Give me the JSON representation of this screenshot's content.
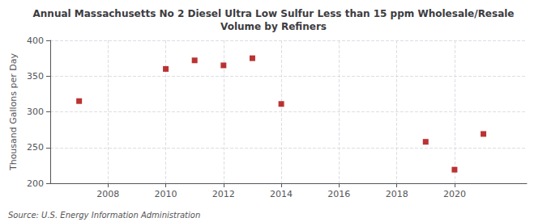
{
  "chart_data": {
    "type": "scatter",
    "title": "Annual Massachusetts No 2 Diesel Ultra Low Sulfur Less than 15 ppm Wholesale/Resale\nVolume by Refiners",
    "ylabel": "Thousand Gallons per Day",
    "annotation": "Source: U.S. Energy Information Administration",
    "x": [
      2007,
      2010,
      2011,
      2012,
      2013,
      2014,
      2019,
      2020,
      2021
    ],
    "values": [
      315,
      360,
      372,
      365,
      375,
      311,
      258,
      219,
      269
    ],
    "color": "#aa0000",
    "marker": "square",
    "xlim": [
      2006.0,
      2022.5
    ],
    "xticks": [
      2008,
      2010,
      2012,
      2014,
      2016,
      2018,
      2020
    ],
    "ylim": [
      200,
      400
    ],
    "yticks": [
      200,
      250,
      300,
      350,
      400
    ],
    "grid": true
  }
}
